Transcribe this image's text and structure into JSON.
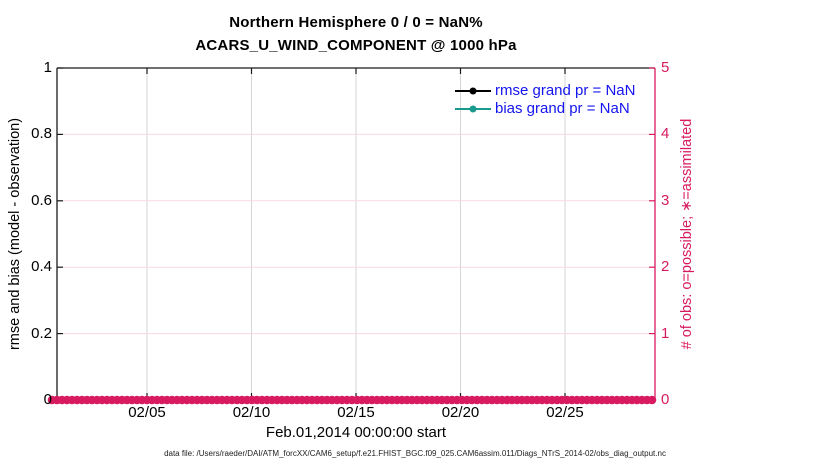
{
  "title": {
    "line1": "Northern Hemisphere 0 / 0 = NaN%",
    "line2": "ACARS_U_WIND_COMPONENT @ 1000 hPa"
  },
  "left_axis": {
    "label": "rmse and bias (model - observation)",
    "ticks": [
      "0",
      "0.2",
      "0.4",
      "0.6",
      "0.8",
      "1"
    ],
    "color": "#000000"
  },
  "right_axis": {
    "label": "# of obs: o=possible; ∗=assimilated",
    "ticks": [
      "0",
      "1",
      "2",
      "3",
      "4",
      "5"
    ],
    "color": "#D81B60"
  },
  "x_axis": {
    "ticks": [
      "02/05",
      "02/10",
      "02/15",
      "02/20",
      "02/25"
    ],
    "label": "Feb.01,2014 00:00:00 start"
  },
  "legend": {
    "text_color": "#1414F0",
    "items": [
      {
        "label": "rmse grand pr = NaN",
        "color": "#000000"
      },
      {
        "label": "bias grand pr = NaN",
        "color": "#1A998D"
      }
    ]
  },
  "footer": {
    "text": "data file: /Users/raeder/DAI/ATM_forcXX/CAM6_setup/f.e21.FHIST_BGC.f09_025.CAM6assim.011/Diags_NTrS_2014-02/obs_diag_output.nc"
  },
  "colors": {
    "accent_pink": "#D81B60",
    "grid_pink": "#F8D9E6",
    "grid_gray": "#D6D6D6",
    "axis_black": "#1a1a1a",
    "teal": "#1A998D",
    "legend_text_blue": "#1414F0"
  },
  "chart_data": {
    "type": "line",
    "title": "Northern Hemisphere 0 / 0 = NaN%",
    "subtitle": "ACARS_U_WIND_COMPONENT @ 1000 hPa",
    "xlabel": "Feb.01,2014 00:00:00 start",
    "ylabel_left": "rmse and bias (model - observation)",
    "ylabel_right": "# of obs: o=possible; ∗=assimilated",
    "ylim_left": [
      0,
      1
    ],
    "ylim_right": [
      0,
      5
    ],
    "x_tick_labels": [
      "02/05",
      "02/10",
      "02/15",
      "02/20",
      "02/25"
    ],
    "y_ticks_left": [
      0,
      0.2,
      0.4,
      0.6,
      0.8,
      1
    ],
    "y_ticks_right": [
      0,
      1,
      2,
      3,
      4,
      5
    ],
    "grid": true,
    "legend_position": "upper-right-inside",
    "stats": {
      "possible_obs": 0,
      "assimilated_obs": 0,
      "percent_assimilated": "NaN"
    },
    "series": [
      {
        "name": "rmse grand pr = NaN",
        "axis": "left",
        "color": "#000000",
        "values": [],
        "note": "all values NaN - no curve drawn"
      },
      {
        "name": "bias grand pr = NaN",
        "axis": "left",
        "color": "#1A998D",
        "values": [],
        "note": "all values NaN - no curve drawn"
      },
      {
        "name": "# of obs possible (o markers)",
        "axis": "right",
        "color": "#D81B60",
        "constant_value": 0,
        "note": "0 at every time bin Feb 01-28 2014; dense markers along y=0"
      },
      {
        "name": "# of obs assimilated (∗ markers)",
        "axis": "right",
        "color": "#D81B60",
        "constant_value": 0,
        "note": "0 at every time bin Feb 01-28 2014; dense markers along y=0"
      }
    ]
  }
}
